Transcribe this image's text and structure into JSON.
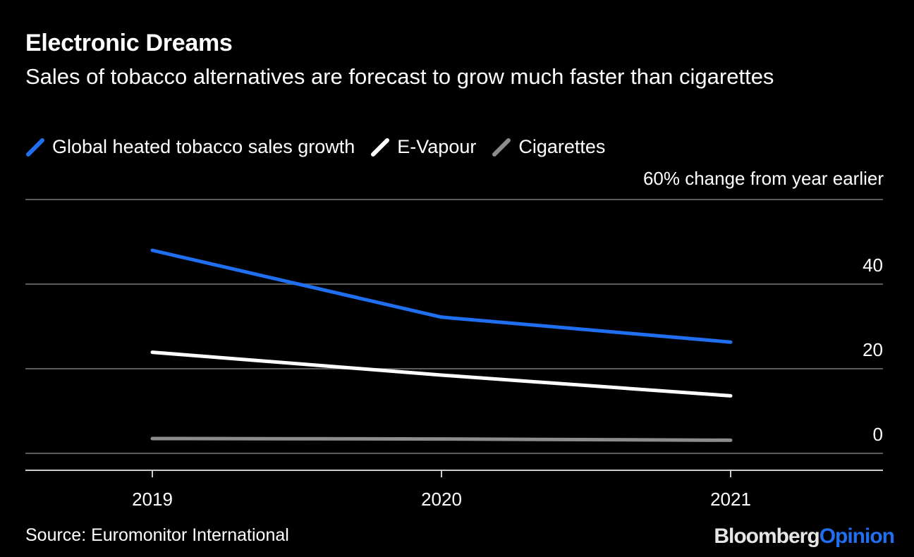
{
  "chart_data": {
    "type": "line",
    "title": "Electronic Dreams",
    "subtitle": "Sales of tobacco alternatives are forecast to grow much faster than cigarettes",
    "ylabel": "60% change from year earlier",
    "categories": [
      "2019",
      "2020",
      "2021"
    ],
    "y_ticks": [
      "0",
      "20",
      "40"
    ],
    "ylim": [
      -4,
      60
    ],
    "series": [
      {
        "name": "Global heated tobacco sales growth",
        "color": "#1f6ff0",
        "values": [
          48,
          32.2,
          26.3
        ]
      },
      {
        "name": "E-Vapour",
        "color": "#ffffff",
        "values": [
          23.9,
          18.5,
          13.6
        ]
      },
      {
        "name": "Cigarettes",
        "color": "#8c8c8c",
        "values": [
          3.5,
          3.4,
          3.1
        ]
      }
    ],
    "source": "Source: Euromonitor International"
  },
  "brand": {
    "part1": "Bloomberg",
    "part2": "Opinion"
  }
}
